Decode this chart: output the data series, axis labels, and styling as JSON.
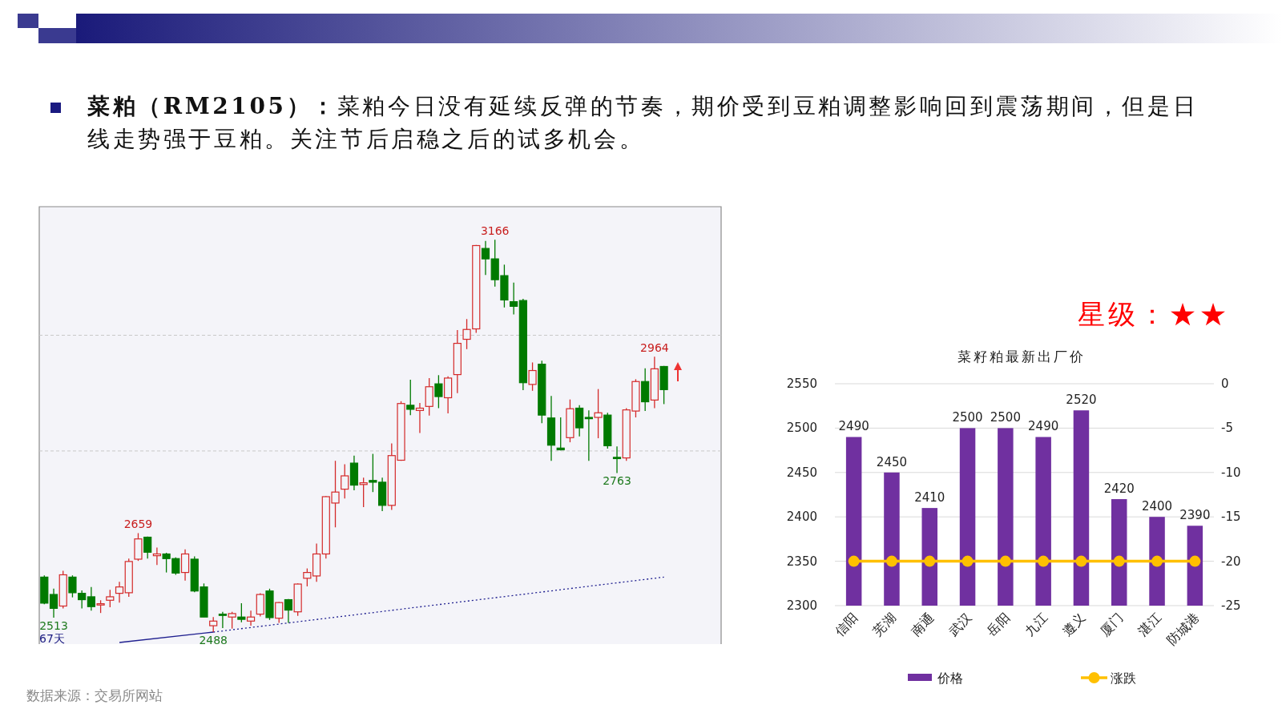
{
  "chart_data": [
    {
      "type": "candlestick",
      "title": "**菜粕（RM2105）：**菜粕今日没有延续反弹的节奏，期价受到豆粕调整影响回到震荡期间，但是日线走势强于豆粕。关注节后启稳之后的试多机会。",
      "categories": [
        null,
        null,
        null,
        null,
        null,
        null,
        null,
        null,
        null,
        null,
        null,
        null,
        null,
        null,
        null,
        null,
        null,
        null,
        null,
        null,
        null,
        null,
        null,
        null,
        null,
        null,
        null,
        null,
        null,
        null,
        null,
        null,
        null,
        null,
        null,
        null,
        null,
        null,
        null,
        null,
        null,
        null,
        null,
        null,
        null,
        null,
        null,
        null,
        null,
        null,
        null,
        null,
        null,
        null,
        null,
        null,
        null,
        null,
        null,
        null,
        null,
        null,
        null,
        null,
        null,
        null,
        null
      ],
      "ohlc": [
        [
          2583,
          2586,
          2536,
          2538
        ],
        [
          2553,
          2563,
          2513,
          2529
        ],
        [
          2533,
          2594,
          2529,
          2587
        ],
        [
          2583,
          2586,
          2548,
          2556
        ],
        [
          2555,
          2560,
          2529,
          2544
        ],
        [
          2549,
          2566,
          2525,
          2532
        ],
        [
          2536,
          2543,
          2521,
          2537
        ],
        [
          2543,
          2561,
          2531,
          2549
        ],
        [
          2555,
          2575,
          2539,
          2566
        ],
        [
          2556,
          2615,
          2549,
          2610
        ],
        [
          2614,
          2659,
          2611,
          2649
        ],
        [
          2652,
          2653,
          2615,
          2626
        ],
        [
          2620,
          2634,
          2604,
          2623
        ],
        [
          2623,
          2625,
          2591,
          2615
        ],
        [
          2615,
          2617,
          2587,
          2590
        ],
        [
          2591,
          2631,
          2577,
          2623
        ],
        [
          2614,
          2619,
          2557,
          2559
        ],
        [
          2566,
          2572,
          2514,
          2514
        ],
        [
          2499,
          2514,
          2488,
          2507
        ],
        [
          2519,
          2523,
          2495,
          2518
        ],
        [
          2514,
          2523,
          2494,
          2520
        ],
        [
          2514,
          2538,
          2505,
          2510
        ],
        [
          2507,
          2525,
          2499,
          2514
        ],
        [
          2519,
          2555,
          2515,
          2553
        ],
        [
          2559,
          2563,
          2509,
          2513
        ],
        [
          2512,
          2540,
          2504,
          2539
        ],
        [
          2544,
          2545,
          2504,
          2526
        ],
        [
          2523,
          2572,
          2516,
          2571
        ],
        [
          2581,
          2598,
          2567,
          2591
        ],
        [
          2585,
          2641,
          2575,
          2623
        ],
        [
          2623,
          2723,
          2615,
          2722
        ],
        [
          2711,
          2784,
          2669,
          2730
        ],
        [
          2735,
          2778,
          2719,
          2758
        ],
        [
          2780,
          2793,
          2733,
          2742
        ],
        [
          2743,
          2755,
          2704,
          2746
        ],
        [
          2750,
          2796,
          2730,
          2747
        ],
        [
          2747,
          2755,
          2697,
          2707
        ],
        [
          2707,
          2814,
          2699,
          2793
        ],
        [
          2785,
          2887,
          2784,
          2883
        ],
        [
          2880,
          2924,
          2863,
          2873
        ],
        [
          2871,
          2884,
          2832,
          2875
        ],
        [
          2878,
          2927,
          2862,
          2912
        ],
        [
          2917,
          2932,
          2875,
          2895
        ],
        [
          2893,
          2930,
          2866,
          2927
        ],
        [
          2933,
          3010,
          2901,
          2987
        ],
        [
          2994,
          3029,
          2977,
          3011
        ],
        [
          3012,
          3157,
          3005,
          3156
        ],
        [
          3151,
          3164,
          3105,
          3133
        ],
        [
          3133,
          3166,
          3085,
          3097
        ],
        [
          3104,
          3123,
          3049,
          3062
        ],
        [
          3059,
          3092,
          3037,
          3051
        ],
        [
          3061,
          3064,
          2906,
          2919
        ],
        [
          2916,
          2954,
          2905,
          2940
        ],
        [
          2951,
          2957,
          2849,
          2863
        ],
        [
          2858,
          2896,
          2784,
          2811
        ],
        [
          2806,
          2859,
          2802,
          2803
        ],
        [
          2824,
          2890,
          2816,
          2874
        ],
        [
          2875,
          2880,
          2826,
          2841
        ],
        [
          2859,
          2871,
          2784,
          2858
        ],
        [
          2859,
          2908,
          2823,
          2867
        ],
        [
          2863,
          2867,
          2805,
          2810
        ],
        [
          2790,
          2809,
          2763,
          2789
        ],
        [
          2789,
          2875,
          2784,
          2872
        ],
        [
          2870,
          2925,
          2859,
          2921
        ],
        [
          2921,
          2944,
          2870,
          2886
        ],
        [
          2889,
          2964,
          2875,
          2943
        ],
        [
          2947,
          2948,
          2882,
          2907
        ]
      ],
      "colors": [
        "#007a00",
        "#007a00",
        "#d42a2a",
        "#007a00",
        "#007a00",
        "#007a00",
        "#d42a2a",
        "#d42a2a",
        "#d42a2a",
        "#d42a2a",
        "#d42a2a",
        "#007a00",
        "#d42a2a",
        "#007a00",
        "#007a00",
        "#d42a2a",
        "#007a00",
        "#007a00",
        "#d42a2a",
        "#007a00",
        "#d42a2a",
        "#007a00",
        "#d42a2a",
        "#d42a2a",
        "#007a00",
        "#d42a2a",
        "#007a00",
        "#d42a2a",
        "#d42a2a",
        "#d42a2a",
        "#d42a2a",
        "#d42a2a",
        "#d42a2a",
        "#007a00",
        "#d42a2a",
        "#007a00",
        "#007a00",
        "#d42a2a",
        "#d42a2a",
        "#007a00",
        "#d42a2a",
        "#d42a2a",
        "#007a00",
        "#d42a2a",
        "#d42a2a",
        "#d42a2a",
        "#d42a2a",
        "#007a00",
        "#007a00",
        "#007a00",
        "#007a00",
        "#007a00",
        "#d42a2a",
        "#007a00",
        "#007a00",
        "#007a00",
        "#d42a2a",
        "#007a00",
        "#007a00",
        "#d42a2a",
        "#007a00",
        "#007a00",
        "#d42a2a",
        "#d42a2a",
        "#007a00",
        "#d42a2a",
        "#007a00"
      ],
      "series": [
        {
          "type": "line",
          "values": [
            null,
            null,
            null,
            null,
            null,
            null,
            null,
            null,
            2470,
            null,
            null,
            null,
            null,
            null,
            null,
            null,
            null,
            null,
            2488,
            null,
            null,
            null,
            null,
            null,
            null,
            null,
            null,
            null,
            null,
            null,
            null,
            null,
            null,
            null,
            null,
            null,
            null,
            null,
            null,
            null,
            null,
            null,
            null,
            null,
            null,
            null,
            null,
            null,
            null,
            null,
            null,
            null,
            null,
            null,
            null,
            null,
            null,
            null,
            null,
            null,
            null,
            null,
            null,
            null,
            null,
            null,
            null
          ],
          "color": "#1f1f8f",
          "line_style": "solid"
        },
        {
          "type": "line",
          "values": [
            null,
            null,
            null,
            null,
            null,
            null,
            null,
            null,
            null,
            null,
            null,
            null,
            null,
            null,
            null,
            null,
            null,
            null,
            2488,
            null,
            null,
            null,
            null,
            null,
            null,
            null,
            null,
            null,
            null,
            null,
            null,
            null,
            null,
            null,
            null,
            null,
            null,
            null,
            null,
            null,
            null,
            null,
            null,
            null,
            null,
            null,
            null,
            null,
            null,
            null,
            null,
            null,
            null,
            null,
            null,
            null,
            null,
            null,
            null,
            null,
            null,
            null,
            null,
            null,
            null,
            null,
            2583
          ],
          "color": "#1f1f8f",
          "line_style": "dotted"
        }
      ],
      "ref_lines": [
        {
          "axis": "y",
          "value": 3001,
          "color": "#c8c8c8",
          "line_style": "dashed"
        },
        {
          "axis": "y",
          "value": 2801,
          "color": "#c8c8c8",
          "line_style": "dashed"
        }
      ],
      "annotations": [
        {
          "text": "3166",
          "y": 3166
        },
        {
          "text": "2659",
          "y": 2659
        },
        {
          "text": "2964",
          "y": 2964
        },
        {
          "text": "2763",
          "y": 2763
        },
        {
          "text": "2513",
          "y": 2513
        },
        {
          "text": "2488",
          "y": 2488
        },
        "67天",
        "数据来源：交易所网站"
      ]
    },
    {
      "type": "bar",
      "title": "菜籽粕最新出厂价",
      "categories": [
        "信阳",
        "芜湖",
        "南通",
        "武汉",
        "岳阳",
        "九江",
        "遵义",
        "厦门",
        "湛江",
        "防城港"
      ],
      "series": [
        {
          "name": "价格",
          "type": "bar",
          "color": "#7030a0",
          "values": [
            2490,
            2450,
            2410,
            2500,
            2500,
            2490,
            2520,
            2420,
            2400,
            2390
          ],
          "value_labels": [
            "2490",
            "2450",
            "2410",
            "2500",
            "2500",
            "2490",
            "2520",
            "2420",
            "2400",
            "2390"
          ]
        },
        {
          "name": "涨跌",
          "type": "line",
          "axis": "y2",
          "color": "#ffc000",
          "marker": "circle",
          "values": [
            -20,
            -20,
            -20,
            -20,
            -20,
            -20,
            -20,
            -20,
            -20,
            -20
          ]
        }
      ],
      "ylim": [
        2300,
        2550
      ],
      "yticks": [
        2300,
        2350,
        2400,
        2450,
        2500,
        2550
      ],
      "y2lim": [
        -25,
        0
      ],
      "y2ticks": [
        -25,
        -20,
        -15,
        -10,
        -5,
        0
      ],
      "grid": "y",
      "legend": "bottom",
      "annotations": [
        "星级：★★"
      ]
    }
  ]
}
